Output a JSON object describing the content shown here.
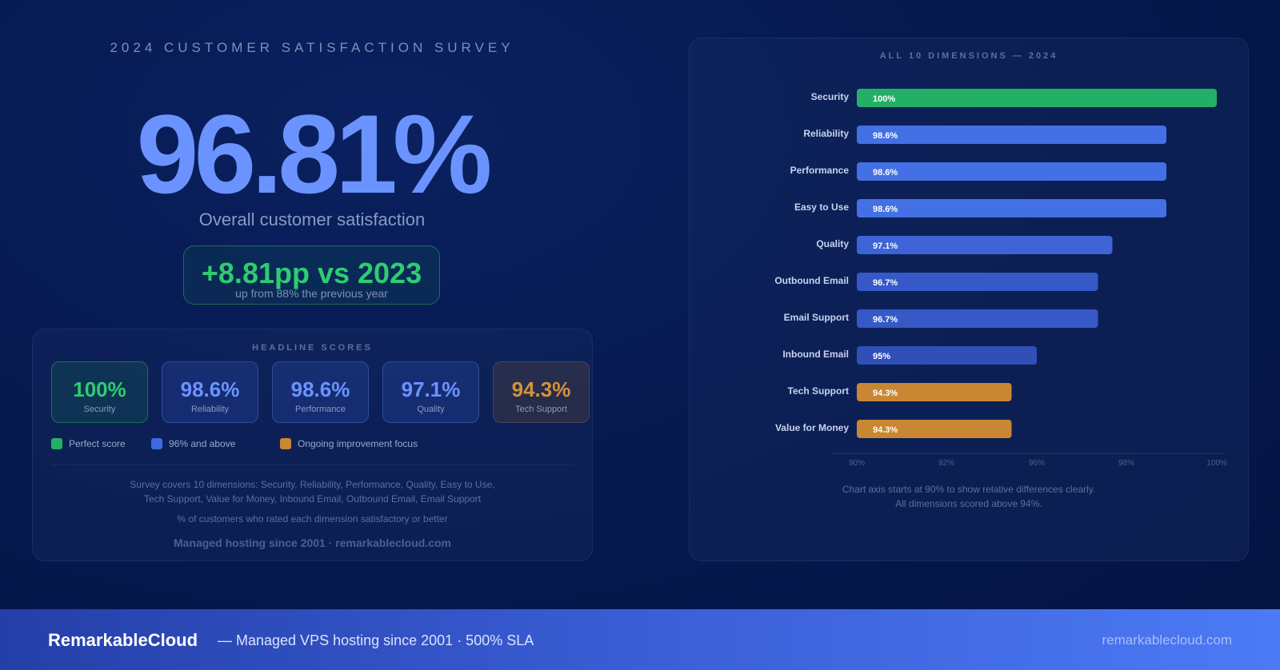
{
  "survey_title": "2024 CUSTOMER SATISFACTION SURVEY",
  "overall": {
    "value": "96.81%",
    "label": "Overall customer satisfaction",
    "delta": "+8.81pp vs 2023",
    "delta_sub": "up from 88% the previous year"
  },
  "headline": {
    "heading": "HEADLINE SCORES",
    "cards": [
      {
        "value": "100%",
        "label": "Security",
        "color": "#2ecc71"
      },
      {
        "value": "98.6%",
        "label": "Reliability",
        "color": "#6b93ff"
      },
      {
        "value": "98.6%",
        "label": "Performance",
        "color": "#6b93ff"
      },
      {
        "value": "97.1%",
        "label": "Quality",
        "color": "#6b93ff"
      },
      {
        "value": "94.3%",
        "label": "Tech Support",
        "color": "#d4923a"
      }
    ],
    "legend": [
      {
        "label": "Perfect score",
        "color": "#23b066"
      },
      {
        "label": "96% and above",
        "color": "#3d6ae0"
      },
      {
        "label": "Ongoing improvement focus",
        "color": "#c98633"
      }
    ],
    "description_line1": "Survey covers 10 dimensions: Security, Reliability, Performance, Quality, Easy to Use,",
    "description_line2": "Tech Support, Value for Money, Inbound Email, Outbound Email, Email Support",
    "note": "% of customers who rated each dimension satisfactory or better",
    "footer": "Managed hosting since 2001 · remarkablecloud.com"
  },
  "chart_heading": "ALL 10 DIMENSIONS — 2024",
  "chart_caption_line1": "Chart axis starts at 90% to show relative differences clearly.",
  "chart_caption_line2": "All dimensions scored above 94%.",
  "chart_data": {
    "type": "bar",
    "orientation": "horizontal",
    "categories": [
      "Security",
      "Reliability",
      "Performance",
      "Easy to Use",
      "Quality",
      "Outbound Email",
      "Email Support",
      "Inbound Email",
      "Tech Support",
      "Value for Money"
    ],
    "values": [
      100,
      98.6,
      98.6,
      98.6,
      97.1,
      96.7,
      96.7,
      95,
      94.3,
      94.3
    ],
    "data_labels": [
      "100%",
      "98.6%",
      "98.6%",
      "98.6%",
      "97.1%",
      "96.7%",
      "96.7%",
      "95%",
      "94.3%",
      "94.3%"
    ],
    "bar_colors": [
      "#23b066",
      "#4470e6",
      "#4470e6",
      "#4470e6",
      "#3d63d6",
      "#3659c7",
      "#3659c7",
      "#3050b8",
      "#c98633",
      "#c98633"
    ],
    "xlim": [
      90,
      100
    ],
    "x_ticks": [
      90,
      92,
      96,
      98,
      100
    ],
    "x_tick_labels": [
      "90%",
      "92%",
      "96%",
      "98%",
      "100%"
    ],
    "grid": false
  },
  "footer_bar": {
    "brand": "RemarkableCloud",
    "tagline": "— Managed VPS hosting since 2001 · 500% SLA",
    "site": "remarkablecloud.com"
  }
}
